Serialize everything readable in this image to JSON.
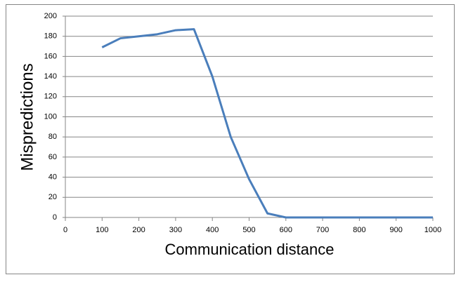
{
  "chart_data": {
    "type": "line",
    "x_label": "Communication distance",
    "y_label": "Mispredictions",
    "x": [
      100,
      150,
      200,
      250,
      300,
      350,
      400,
      450,
      500,
      550,
      600,
      650,
      700,
      750,
      800,
      850,
      900,
      950,
      1000
    ],
    "series": [
      {
        "name": "Mispredictions",
        "color": "#4a7ebb",
        "values": [
          169,
          178,
          180,
          182,
          186,
          187,
          140,
          80,
          38,
          4,
          0,
          0,
          0,
          0,
          0,
          0,
          0,
          0,
          0
        ]
      }
    ],
    "xlim": [
      0,
      1000
    ],
    "xticks": [
      0,
      100,
      200,
      300,
      400,
      500,
      600,
      700,
      800,
      900,
      1000
    ],
    "ylim": [
      0,
      200
    ],
    "yticks": [
      0,
      20,
      40,
      60,
      80,
      100,
      120,
      140,
      160,
      180,
      200
    ],
    "grid": true
  }
}
